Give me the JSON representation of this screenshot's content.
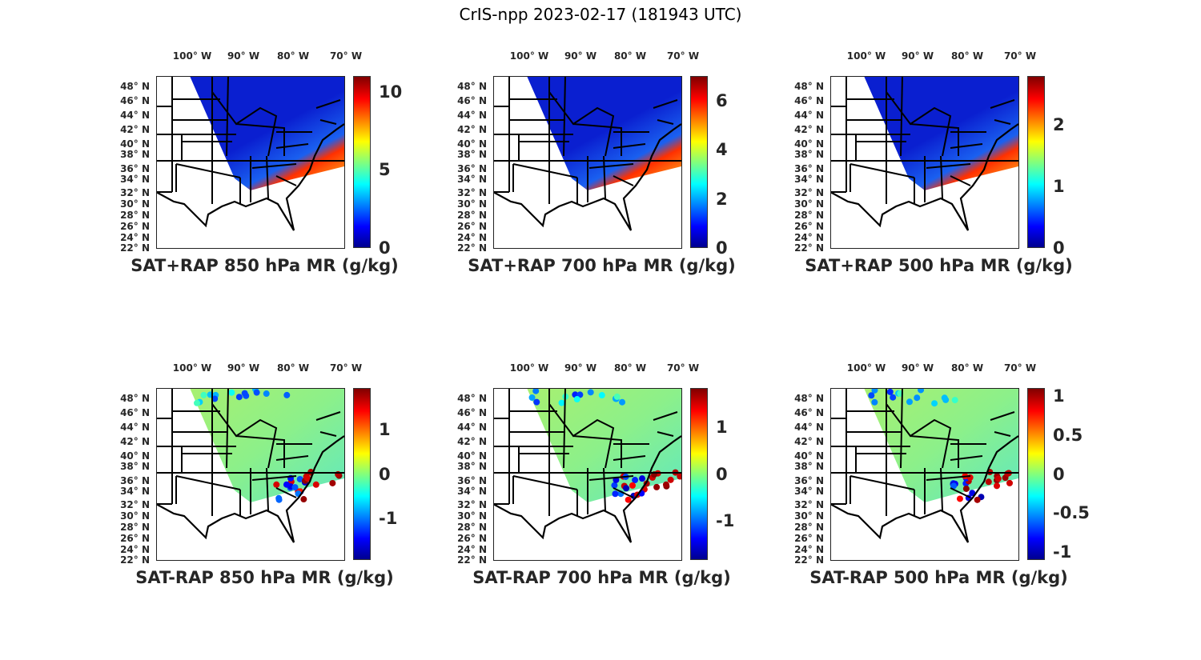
{
  "title": "CrIS-npp 2023-02-17 (181943 UTC)",
  "colormap": "jet",
  "lon_labels": [
    "100° W",
    "90° W",
    "80° W",
    "70° W"
  ],
  "lat_labels": [
    "48° N",
    "46° N",
    "44° N",
    "42° N",
    "40° N",
    "38° N",
    "36° N",
    "34° N",
    "32° N",
    "30° N",
    "28° N",
    "26° N",
    "24° N",
    "22° N"
  ],
  "panels": [
    {
      "title": "SAT+RAP 850 hPa MR (g/kg)",
      "kind": "total",
      "colorbar": {
        "min": 0,
        "max": 11,
        "ticks": [
          0,
          5,
          10
        ],
        "tick_labels": [
          "0",
          "5",
          "10"
        ]
      }
    },
    {
      "title": "SAT+RAP 700 hPa MR (g/kg)",
      "kind": "total",
      "colorbar": {
        "min": 0,
        "max": 7,
        "ticks": [
          0,
          2,
          4,
          6
        ],
        "tick_labels": [
          "0",
          "2",
          "4",
          "6"
        ]
      }
    },
    {
      "title": "SAT+RAP 500 hPa MR (g/kg)",
      "kind": "total",
      "colorbar": {
        "min": 0,
        "max": 2.8,
        "ticks": [
          0,
          1,
          2
        ],
        "tick_labels": [
          "0",
          "1",
          "2"
        ]
      }
    },
    {
      "title": "SAT-RAP 850 hPa MR (g/kg)",
      "kind": "diff",
      "colorbar": {
        "min": -1.95,
        "max": 1.95,
        "ticks": [
          -1,
          0,
          1
        ],
        "tick_labels": [
          "-1",
          "0",
          "1"
        ]
      }
    },
    {
      "title": "SAT-RAP 700 hPa MR (g/kg)",
      "kind": "diff",
      "colorbar": {
        "min": -1.85,
        "max": 1.85,
        "ticks": [
          -1,
          0,
          1
        ],
        "tick_labels": [
          "-1",
          "0",
          "1"
        ]
      }
    },
    {
      "title": "SAT-RAP 500 hPa MR (g/kg)",
      "kind": "diff",
      "colorbar": {
        "min": -1.1,
        "max": 1.1,
        "ticks": [
          -1,
          -0.5,
          0,
          0.5,
          1
        ],
        "tick_labels": [
          "-1",
          "-0.5",
          "0",
          "0.5",
          "1"
        ]
      }
    }
  ]
}
